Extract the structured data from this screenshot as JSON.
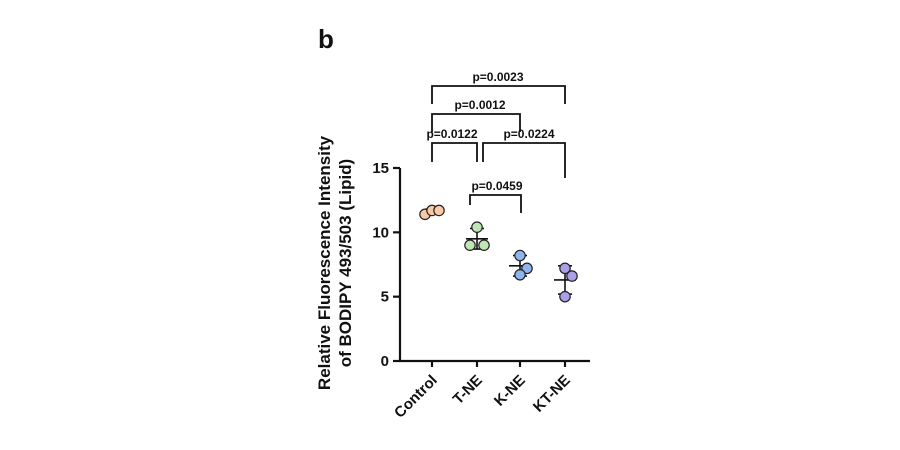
{
  "panel_label": "b",
  "chart_data": {
    "type": "scatter",
    "ylabel_line1": "Relative Fluorescence Intensity",
    "ylabel_line2": "of BODIPY 493/503 (Lipid)",
    "ylim": [
      0,
      15
    ],
    "yticks": [
      "0",
      "5",
      "10",
      "15"
    ],
    "grid": false,
    "categories": [
      "Control",
      "T-NE",
      "K-NE",
      "KT-NE"
    ],
    "colors": [
      "#F8C9A6",
      "#BFE6B4",
      "#8FB4EE",
      "#A9A0E8"
    ],
    "points": [
      [
        11.4,
        11.7,
        11.7
      ],
      [
        10.4,
        9.0,
        9.0
      ],
      [
        8.2,
        7.2,
        6.7
      ],
      [
        7.2,
        6.6,
        5.0
      ]
    ],
    "mean": [
      11.6,
      9.5,
      7.4,
      6.3
    ],
    "sd": [
      0.2,
      0.8,
      0.8,
      1.1
    ],
    "comparisons": [
      {
        "a": 0,
        "b": 1,
        "label": "p=0.0122"
      },
      {
        "a": 1,
        "b": 2,
        "label": "p=0.0459"
      },
      {
        "a": 1,
        "b": 3,
        "label": "p=0.0224"
      },
      {
        "a": 0,
        "b": 2,
        "label": "p=0.0012"
      },
      {
        "a": 0,
        "b": 3,
        "label": "p=0.0023"
      }
    ]
  }
}
